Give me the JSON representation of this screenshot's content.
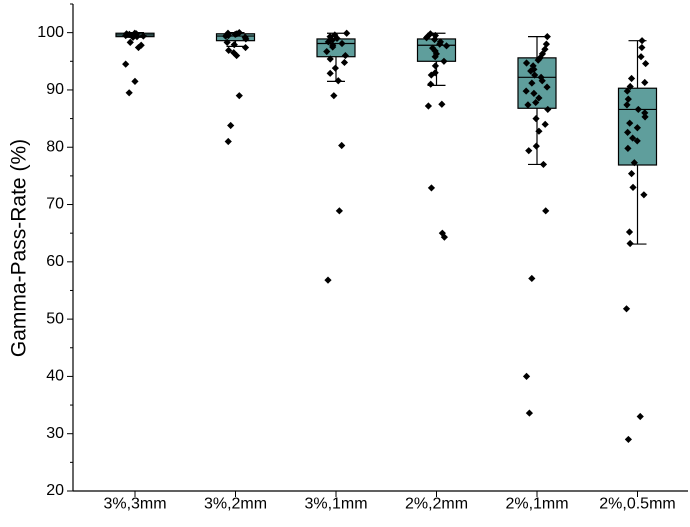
{
  "chart_data": {
    "type": "box",
    "title": "",
    "xlabel": "",
    "ylabel": "Gamma-Pass-Rate (%)",
    "ylim": [
      20,
      105
    ],
    "yticks": [
      20,
      30,
      40,
      50,
      60,
      70,
      80,
      90,
      100
    ],
    "grid": false,
    "box_color": "#5f9e9c",
    "point_color": "#000000",
    "categories": [
      "3%,3mm",
      "3%,2mm",
      "3%,1mm",
      "2%,2mm",
      "2%,1mm",
      "2%,0.5mm"
    ],
    "boxes": [
      {
        "category": "3%,3mm",
        "whisker_low": 99.2,
        "q1": 99.3,
        "median": 99.6,
        "q3": 99.9,
        "whisker_high": 100
      },
      {
        "category": "3%,2mm",
        "whisker_low": 97.6,
        "q1": 98.6,
        "median": 99.4,
        "q3": 99.8,
        "whisker_high": 100
      },
      {
        "category": "3%,1mm",
        "whisker_low": 91.5,
        "q1": 95.8,
        "median": 98.1,
        "q3": 98.9,
        "whisker_high": 99.9
      },
      {
        "category": "2%,2mm",
        "whisker_low": 90.8,
        "q1": 95.0,
        "median": 97.8,
        "q3": 98.9,
        "whisker_high": 99.9
      },
      {
        "category": "2%,1mm",
        "whisker_low": 77.0,
        "q1": 86.8,
        "median": 92.2,
        "q3": 95.6,
        "whisker_high": 99.3
      },
      {
        "category": "2%,0.5mm",
        "whisker_low": 63.1,
        "q1": 76.9,
        "median": 86.6,
        "q3": 90.3,
        "whisker_high": 98.6
      }
    ],
    "points": [
      [
        99.9,
        99.8,
        99.8,
        99.7,
        99.6,
        99.6,
        99.5,
        99.4,
        99.3,
        99.2,
        98.3,
        97.8,
        97.4,
        94.5,
        91.5,
        89.5
      ],
      [
        100,
        99.9,
        99.8,
        99.7,
        99.5,
        99.4,
        99.2,
        98.9,
        98.3,
        97.9,
        97.4,
        96.9,
        96.5,
        96.0,
        89.0,
        83.8,
        81.0
      ],
      [
        99.9,
        99.6,
        99.3,
        99.0,
        98.7,
        98.4,
        98.1,
        97.8,
        97.5,
        96.7,
        96.0,
        95.4,
        94.8,
        93.8,
        92.9,
        91.6,
        89.0,
        80.3,
        68.9,
        56.8
      ],
      [
        99.8,
        99.5,
        99.3,
        99.1,
        98.8,
        98.4,
        98.0,
        97.7,
        97.3,
        96.8,
        96.3,
        95.8,
        95.0,
        94.2,
        93.0,
        92.6,
        91.0,
        87.5,
        87.2,
        72.9,
        65.0,
        64.3
      ],
      [
        99.3,
        98.0,
        97.1,
        96.3,
        95.6,
        95.2,
        94.7,
        94.2,
        93.6,
        93.3,
        92.6,
        92.2,
        91.6,
        91.2,
        90.5,
        89.8,
        89.4,
        88.6,
        87.8,
        87.4,
        86.6,
        85.0,
        84.0,
        82.8,
        80.2,
        79.4,
        77.0,
        68.9,
        57.1,
        40.0,
        33.6
      ],
      [
        98.6,
        97.4,
        95.8,
        94.6,
        92.0,
        91.3,
        90.6,
        89.8,
        88.4,
        87.4,
        86.6,
        86.0,
        85.3,
        84.2,
        83.4,
        82.6,
        81.6,
        81.1,
        79.8,
        77.3,
        75.4,
        73.0,
        71.7,
        65.2,
        63.2,
        51.8,
        33.0,
        29.0
      ]
    ]
  }
}
